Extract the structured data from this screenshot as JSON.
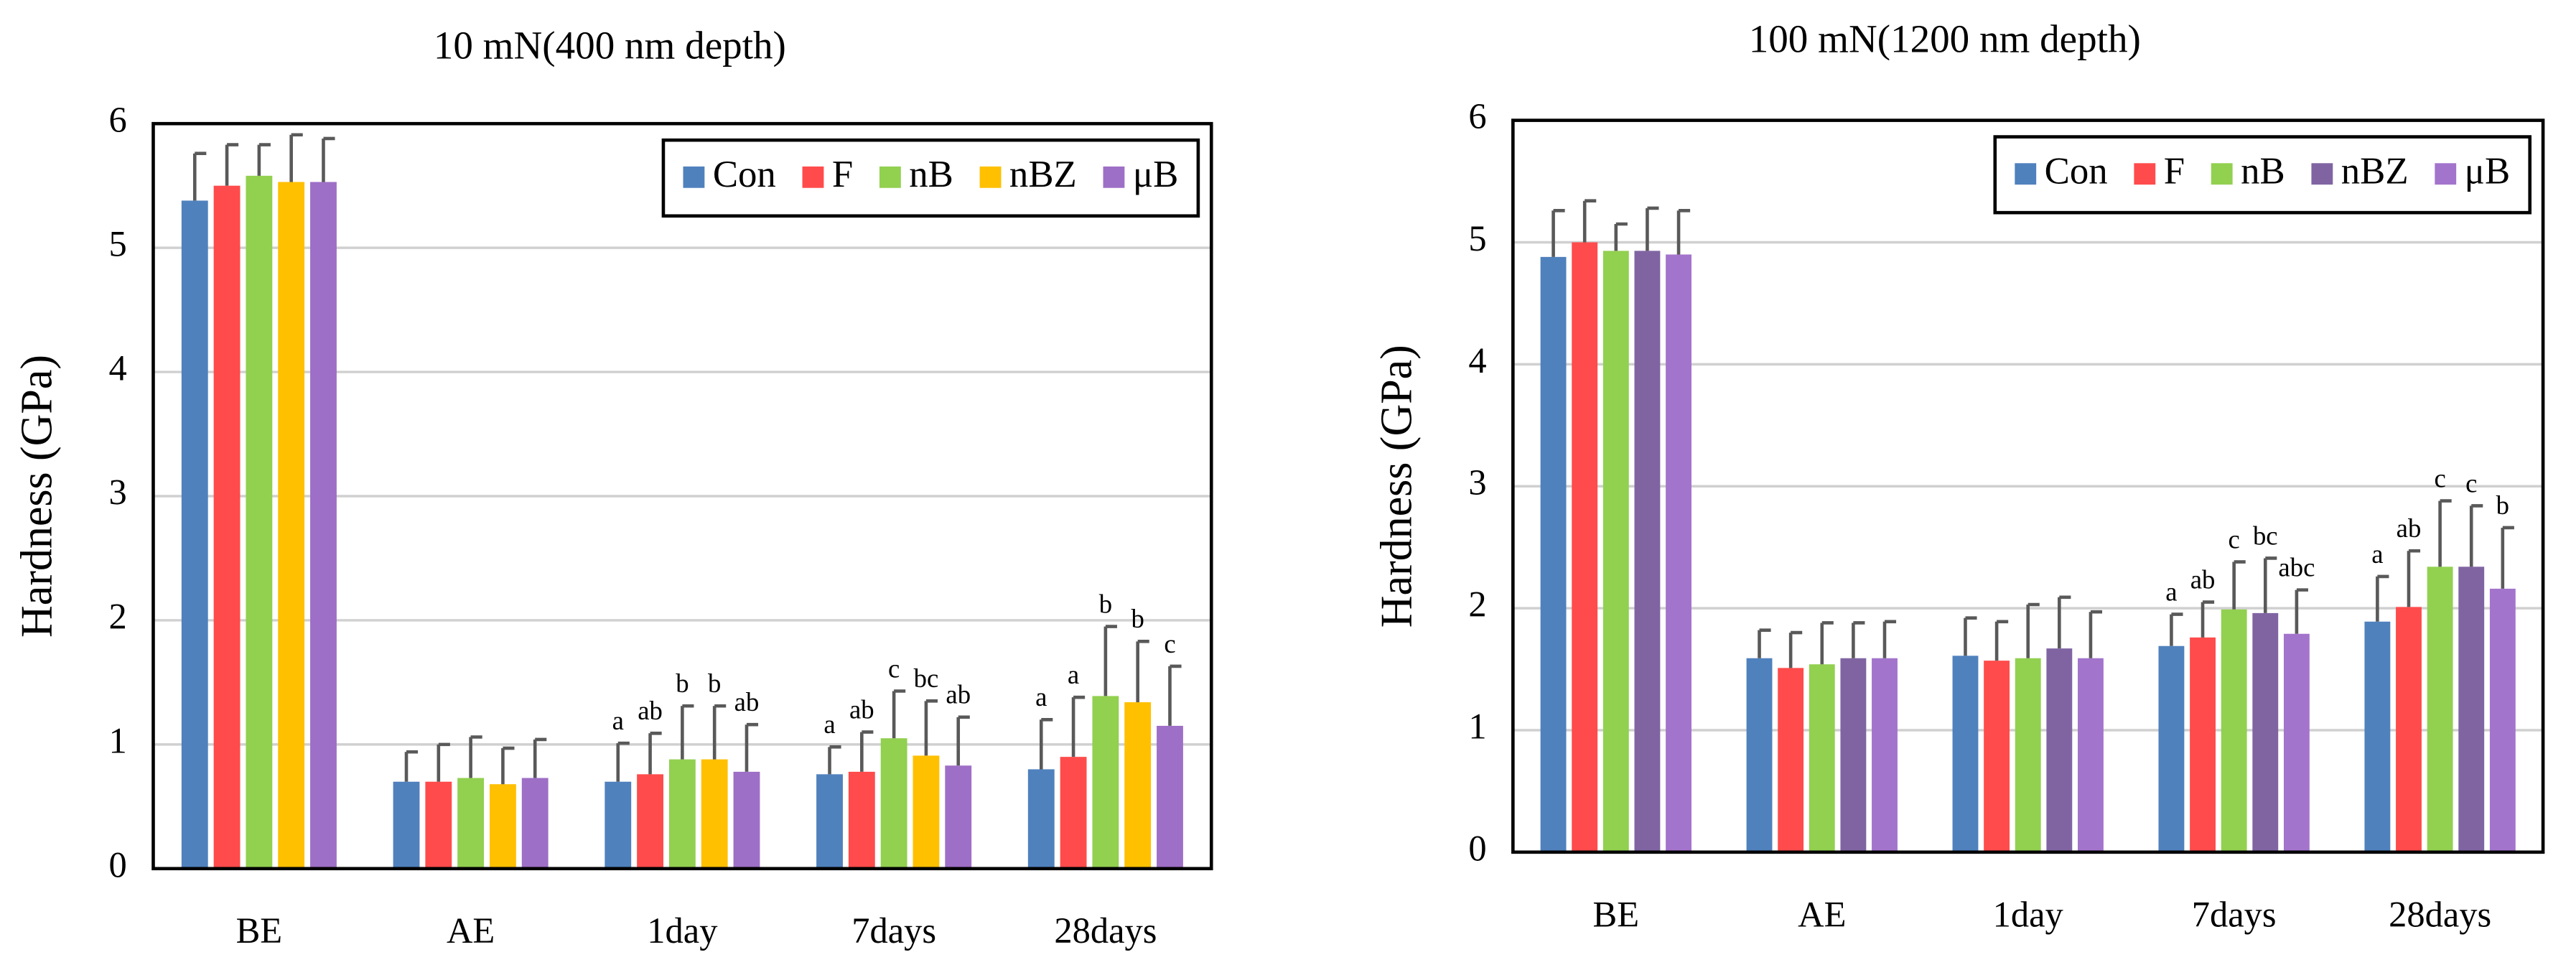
{
  "chart_data": [
    {
      "type": "bar",
      "title": "10 mN(400 nm depth)",
      "ylabel": "Hardness (GPa)",
      "categories": [
        "BE",
        "AE",
        "1day",
        "7days",
        "28days"
      ],
      "series": [
        {
          "name": "Con",
          "color": "#4f81bd",
          "values": [
            5.38,
            0.7,
            0.7,
            0.76,
            0.8
          ],
          "errors": [
            0.38,
            0.24,
            0.31,
            0.22,
            0.4
          ],
          "letters": [
            null,
            null,
            "a",
            "a",
            "a"
          ]
        },
        {
          "name": "F",
          "color": "#ff4b4b",
          "values": [
            5.5,
            0.7,
            0.76,
            0.78,
            0.9
          ],
          "errors": [
            0.33,
            0.3,
            0.33,
            0.32,
            0.48
          ],
          "letters": [
            null,
            null,
            "ab",
            "ab",
            "a"
          ]
        },
        {
          "name": "nB",
          "color": "#92d050",
          "values": [
            5.58,
            0.73,
            0.88,
            1.05,
            1.39
          ],
          "errors": [
            0.25,
            0.33,
            0.43,
            0.38,
            0.56
          ],
          "letters": [
            null,
            null,
            "b",
            "c",
            "b"
          ]
        },
        {
          "name": "nBZ",
          "color": "#ffc000",
          "values": [
            5.53,
            0.68,
            0.88,
            0.91,
            1.34
          ],
          "errors": [
            0.38,
            0.29,
            0.43,
            0.44,
            0.49
          ],
          "letters": [
            null,
            null,
            "b",
            "bc",
            "b"
          ]
        },
        {
          "name": "μB",
          "color": "#9e6fc6",
          "values": [
            5.53,
            0.73,
            0.78,
            0.83,
            1.15
          ],
          "errors": [
            0.35,
            0.31,
            0.38,
            0.39,
            0.48
          ],
          "letters": [
            null,
            null,
            "ab",
            "ab",
            "c"
          ]
        }
      ],
      "ylim": [
        0,
        6
      ],
      "yticks": [
        0,
        1,
        2,
        3,
        4,
        5,
        6
      ],
      "grid": true,
      "legend": "upper right"
    },
    {
      "type": "bar",
      "title": "100 mN(1200 nm depth)",
      "ylabel": "Hardness (GPa)",
      "categories": [
        "BE",
        "AE",
        "1day",
        "7days",
        "28days"
      ],
      "series": [
        {
          "name": "Con",
          "color": "#4f81bd",
          "values": [
            4.88,
            1.59,
            1.61,
            1.69,
            1.89
          ],
          "errors": [
            0.38,
            0.23,
            0.31,
            0.26,
            0.37
          ],
          "letters": [
            null,
            null,
            null,
            "a",
            "a"
          ]
        },
        {
          "name": "F",
          "color": "#ff4b4b",
          "values": [
            5.0,
            1.51,
            1.57,
            1.76,
            2.01
          ],
          "errors": [
            0.34,
            0.29,
            0.32,
            0.29,
            0.46
          ],
          "letters": [
            null,
            null,
            null,
            "ab",
            "ab"
          ]
        },
        {
          "name": "nB",
          "color": "#92d050",
          "values": [
            4.93,
            1.54,
            1.59,
            1.99,
            2.34
          ],
          "errors": [
            0.22,
            0.34,
            0.44,
            0.39,
            0.54
          ],
          "letters": [
            null,
            null,
            null,
            "c",
            "c"
          ]
        },
        {
          "name": "nBZ",
          "color": "#8064a2",
          "values": [
            4.93,
            1.59,
            1.67,
            1.96,
            2.34
          ],
          "errors": [
            0.35,
            0.29,
            0.42,
            0.45,
            0.5
          ],
          "letters": [
            null,
            null,
            null,
            "bc",
            "c"
          ]
        },
        {
          "name": "μB",
          "color": "#a374cc",
          "values": [
            4.9,
            1.59,
            1.59,
            1.79,
            2.16
          ],
          "errors": [
            0.36,
            0.3,
            0.38,
            0.36,
            0.5
          ],
          "letters": [
            null,
            null,
            null,
            "abc",
            "b"
          ]
        }
      ],
      "ylim": [
        0,
        6
      ],
      "yticks": [
        0,
        1,
        2,
        3,
        4,
        5,
        6
      ],
      "grid": true,
      "legend": "upper right"
    }
  ]
}
